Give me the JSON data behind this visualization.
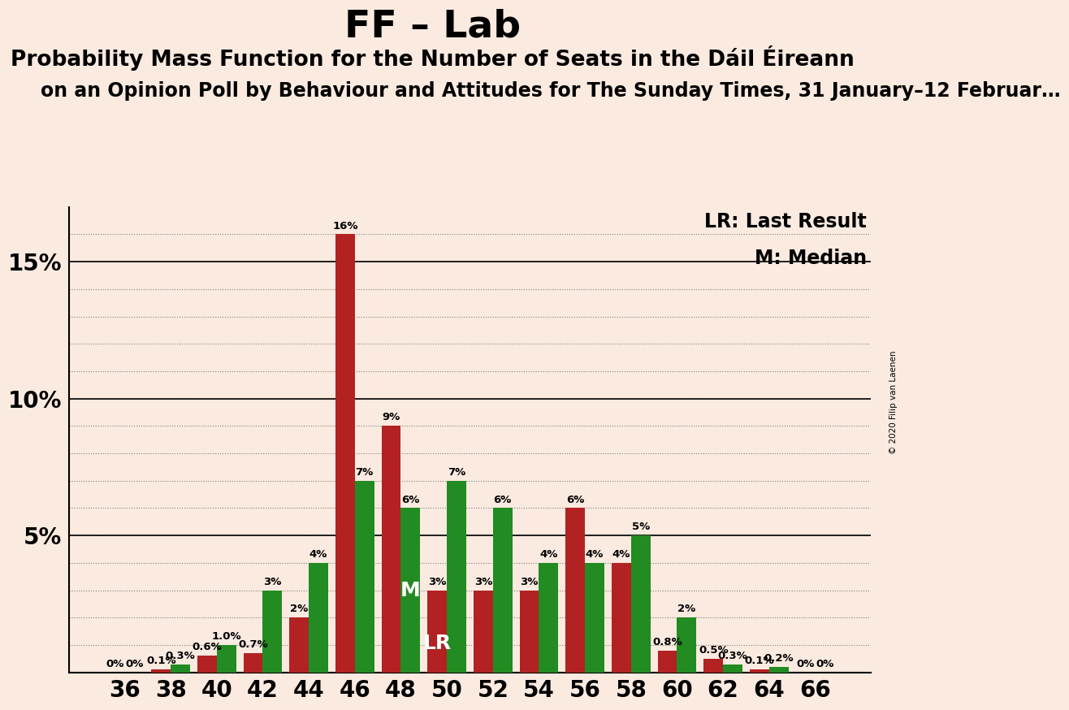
{
  "title": "FF – Lab",
  "subtitle1": "Probability Mass Function for the Number of Seats in the Dáil Éireann",
  "subtitle2": "on an Opinion Poll by Behaviour and Attitudes for The Sunday Times, 31 January–12 Februar…",
  "copyright": "© 2020 Filip van Laenen",
  "legend_lr": "LR: Last Result",
  "legend_m": "M: Median",
  "background_color": "#FAEAE0",
  "bar_color_red": "#B22222",
  "bar_color_green": "#228B22",
  "seats": [
    36,
    38,
    40,
    42,
    44,
    46,
    48,
    50,
    52,
    54,
    56,
    58,
    60,
    62,
    64,
    66
  ],
  "red_values": [
    0.0,
    0.1,
    0.6,
    0.7,
    2.0,
    16.0,
    9.0,
    3.0,
    3.0,
    3.0,
    6.0,
    4.0,
    0.8,
    0.5,
    0.1,
    0.0
  ],
  "green_values": [
    0.0,
    0.3,
    1.0,
    3.0,
    4.0,
    7.0,
    6.0,
    7.0,
    6.0,
    4.0,
    4.0,
    5.0,
    2.0,
    0.3,
    0.2,
    0.0
  ],
  "red_labels": [
    "0%",
    "0.1%",
    "0.6%",
    "0.7%",
    "2%",
    "16%",
    "9%",
    "3%",
    "3%",
    "3%",
    "6%",
    "4%",
    "0.8%",
    "0.5%",
    "0.1%",
    "0%"
  ],
  "green_labels": [
    "0%",
    "0.3%",
    "1.0%",
    "3%",
    "4%",
    "7%",
    "6%",
    "7%",
    "6%",
    "4%",
    "4%",
    "5%",
    "2%",
    "0.3%",
    "0.2%",
    "0%"
  ],
  "ylim": [
    0,
    17
  ],
  "yticks": [
    5,
    10,
    15
  ],
  "ytick_labels": [
    "5%",
    "10%",
    "15%"
  ],
  "lr_seat": 50,
  "median_seat": 48,
  "title_fontsize": 34,
  "subtitle1_fontsize": 19,
  "subtitle2_fontsize": 17,
  "bar_width": 0.42,
  "label_fontsize": 9.5
}
